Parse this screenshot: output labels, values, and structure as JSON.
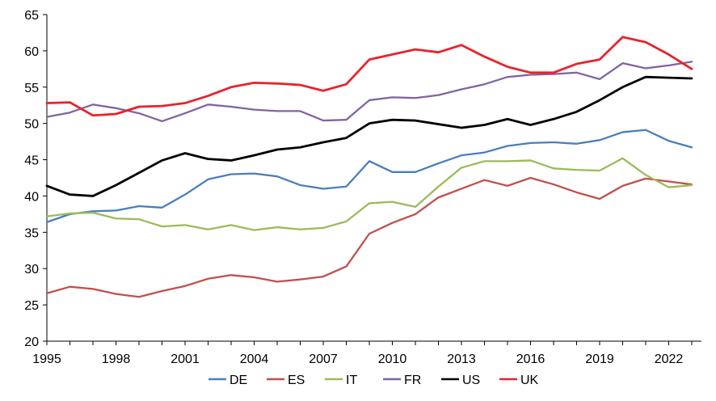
{
  "chart_data": {
    "type": "line",
    "title": "",
    "xlabel": "",
    "ylabel": "",
    "x": [
      1995,
      1996,
      1997,
      1998,
      1999,
      2000,
      2001,
      2002,
      2003,
      2004,
      2005,
      2006,
      2007,
      2008,
      2009,
      2010,
      2011,
      2012,
      2013,
      2014,
      2015,
      2016,
      2017,
      2018,
      2019,
      2020,
      2021,
      2022,
      2023
    ],
    "xticks": [
      1995,
      1998,
      2001,
      2004,
      2007,
      2010,
      2013,
      2016,
      2019,
      2022
    ],
    "xlim": [
      1995,
      2023
    ],
    "ylim": [
      20,
      65
    ],
    "yticks": [
      20,
      25,
      30,
      35,
      40,
      45,
      50,
      55,
      60,
      65
    ],
    "grid": false,
    "legend": "bottom",
    "series": [
      {
        "name": "DE",
        "color": "#4a7ebb",
        "values": [
          36.4,
          37.5,
          37.9,
          38.0,
          38.6,
          38.4,
          40.2,
          42.3,
          43.0,
          43.1,
          42.7,
          41.5,
          41.0,
          41.3,
          44.8,
          43.3,
          43.3,
          44.5,
          45.6,
          46.0,
          46.9,
          47.3,
          47.4,
          47.2,
          47.7,
          48.8,
          49.1,
          47.6,
          46.7
        ]
      },
      {
        "name": "ES",
        "color": "#c0504d",
        "values": [
          26.6,
          27.5,
          27.2,
          26.5,
          26.1,
          26.9,
          27.6,
          28.6,
          29.1,
          28.8,
          28.2,
          28.5,
          28.9,
          30.3,
          34.8,
          36.3,
          37.5,
          39.8,
          41.0,
          42.2,
          41.4,
          42.5,
          41.6,
          40.5,
          39.6,
          41.4,
          42.4,
          42.0,
          41.6
        ]
      },
      {
        "name": "IT",
        "color": "#9bbb59",
        "values": [
          37.2,
          37.6,
          37.7,
          36.9,
          36.8,
          35.8,
          36.0,
          35.4,
          36.0,
          35.3,
          35.7,
          35.4,
          35.6,
          36.5,
          39.0,
          39.2,
          38.5,
          41.3,
          43.9,
          44.8,
          44.8,
          44.9,
          43.8,
          43.6,
          43.5,
          45.2,
          42.9,
          41.2,
          41.5
        ]
      },
      {
        "name": "FR",
        "color": "#8064a2",
        "values": [
          50.9,
          51.5,
          52.6,
          52.1,
          51.4,
          50.3,
          51.4,
          52.6,
          52.3,
          51.9,
          51.7,
          51.7,
          50.4,
          50.5,
          53.2,
          53.6,
          53.5,
          53.9,
          54.7,
          55.4,
          56.4,
          56.7,
          56.8,
          57.0,
          56.1,
          58.3,
          57.6,
          58.0,
          58.5
        ]
      },
      {
        "name": "US",
        "color": "#000000",
        "values": [
          41.4,
          40.2,
          40.0,
          41.5,
          43.2,
          44.9,
          45.9,
          45.1,
          44.9,
          45.6,
          46.4,
          46.7,
          47.4,
          48.0,
          50.0,
          50.5,
          50.4,
          49.9,
          49.4,
          49.8,
          50.6,
          49.8,
          50.6,
          51.6,
          53.2,
          55.0,
          56.4,
          56.3,
          56.2
        ]
      },
      {
        "name": "UK",
        "color": "#e8232a",
        "values": [
          52.8,
          52.9,
          51.1,
          51.3,
          52.3,
          52.4,
          52.8,
          53.8,
          55.0,
          55.6,
          55.5,
          55.3,
          54.5,
          55.4,
          58.8,
          59.5,
          60.2,
          59.8,
          60.8,
          59.2,
          57.8,
          57.0,
          57.0,
          58.2,
          58.8,
          61.9,
          61.2,
          59.5,
          57.5
        ]
      }
    ]
  }
}
